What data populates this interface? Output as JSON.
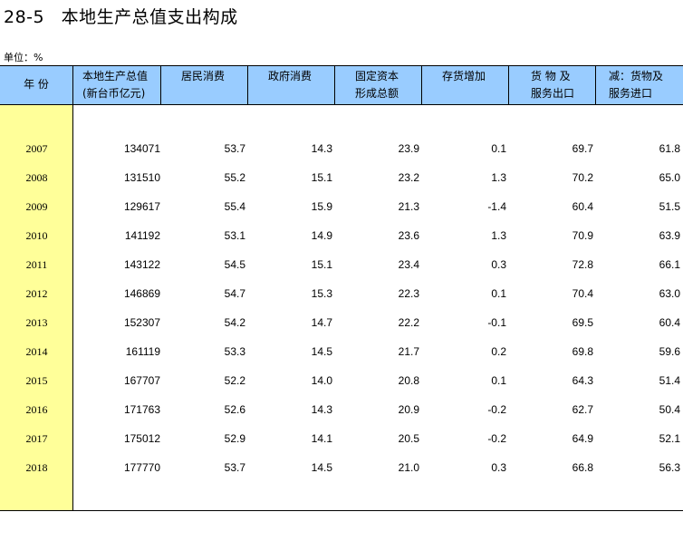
{
  "title": {
    "code": "28-5",
    "text": "本地生产总值支出构成"
  },
  "unit": "单位：%",
  "headers": [
    {
      "line1": "年 份",
      "line2": ""
    },
    {
      "line1": "本地生产总值",
      "line2": "(新台币亿元)"
    },
    {
      "line1": "居民消费",
      "line2": ""
    },
    {
      "line1": "政府消费",
      "line2": ""
    },
    {
      "line1": "固定资本",
      "line2": "形成总额"
    },
    {
      "line1": "存货增加",
      "line2": ""
    },
    {
      "line1": "货 物 及",
      "line2": "服务出口"
    },
    {
      "line1": "减：货物及",
      "line2": "服务进口"
    }
  ],
  "rows": [
    {
      "year": "2007",
      "gdp": "134071",
      "household": "53.7",
      "government": "14.3",
      "capital": "23.9",
      "inventory": "0.1",
      "exports": "69.7",
      "imports": "61.8"
    },
    {
      "year": "2008",
      "gdp": "131510",
      "household": "55.2",
      "government": "15.1",
      "capital": "23.2",
      "inventory": "1.3",
      "exports": "70.2",
      "imports": "65.0"
    },
    {
      "year": "2009",
      "gdp": "129617",
      "household": "55.4",
      "government": "15.9",
      "capital": "21.3",
      "inventory": "-1.4",
      "exports": "60.4",
      "imports": "51.5"
    },
    {
      "year": "2010",
      "gdp": "141192",
      "household": "53.1",
      "government": "14.9",
      "capital": "23.6",
      "inventory": "1.3",
      "exports": "70.9",
      "imports": "63.9"
    },
    {
      "year": "2011",
      "gdp": "143122",
      "household": "54.5",
      "government": "15.1",
      "capital": "23.4",
      "inventory": "0.3",
      "exports": "72.8",
      "imports": "66.1"
    },
    {
      "year": "2012",
      "gdp": "146869",
      "household": "54.7",
      "government": "15.3",
      "capital": "22.3",
      "inventory": "0.1",
      "exports": "70.4",
      "imports": "63.0"
    },
    {
      "year": "2013",
      "gdp": "152307",
      "household": "54.2",
      "government": "14.7",
      "capital": "22.2",
      "inventory": "-0.1",
      "exports": "69.5",
      "imports": "60.4"
    },
    {
      "year": "2014",
      "gdp": "161119",
      "household": "53.3",
      "government": "14.5",
      "capital": "21.7",
      "inventory": "0.2",
      "exports": "69.8",
      "imports": "59.6"
    },
    {
      "year": "2015",
      "gdp": "167707",
      "household": "52.2",
      "government": "14.0",
      "capital": "20.8",
      "inventory": "0.1",
      "exports": "64.3",
      "imports": "51.4"
    },
    {
      "year": "2016",
      "gdp": "171763",
      "household": "52.6",
      "government": "14.3",
      "capital": "20.9",
      "inventory": "-0.2",
      "exports": "62.7",
      "imports": "50.4"
    },
    {
      "year": "2017",
      "gdp": "175012",
      "household": "52.9",
      "government": "14.1",
      "capital": "20.5",
      "inventory": "-0.2",
      "exports": "64.9",
      "imports": "52.1"
    },
    {
      "year": "2018",
      "gdp": "177770",
      "household": "53.7",
      "government": "14.5",
      "capital": "21.0",
      "inventory": "0.3",
      "exports": "66.8",
      "imports": "56.3"
    }
  ],
  "colors": {
    "header_bg": "#99ccff",
    "year_col_bg": "#ffff99"
  }
}
